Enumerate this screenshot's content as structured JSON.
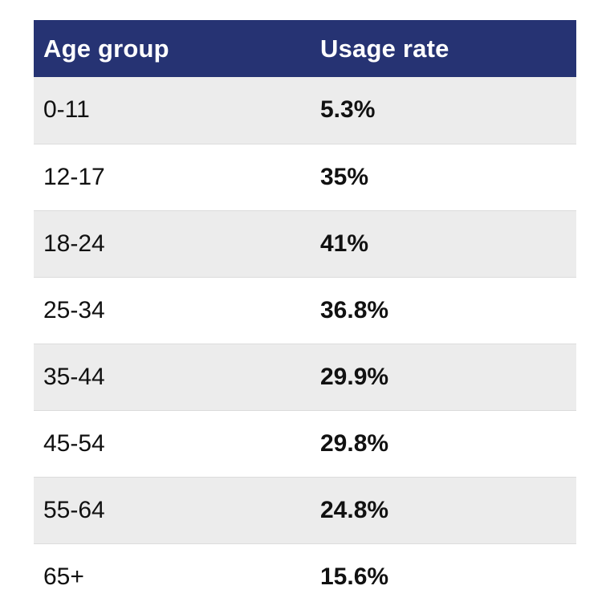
{
  "table": {
    "headers": {
      "age_group": "Age group",
      "usage_rate": "Usage rate"
    },
    "rows": [
      {
        "age_group": "0-11",
        "usage_rate": "5.3%"
      },
      {
        "age_group": "12-17",
        "usage_rate": "35%"
      },
      {
        "age_group": "18-24",
        "usage_rate": "41%"
      },
      {
        "age_group": "25-34",
        "usage_rate": "36.8%"
      },
      {
        "age_group": "35-44",
        "usage_rate": "29.9%"
      },
      {
        "age_group": "45-54",
        "usage_rate": "29.8%"
      },
      {
        "age_group": "55-64",
        "usage_rate": "24.8%"
      },
      {
        "age_group": "65+",
        "usage_rate": "15.6%"
      }
    ]
  },
  "colors": {
    "header_background": "#263373",
    "header_text": "#ffffff",
    "stripe_row": "#ececec",
    "plain_row": "#ffffff"
  }
}
